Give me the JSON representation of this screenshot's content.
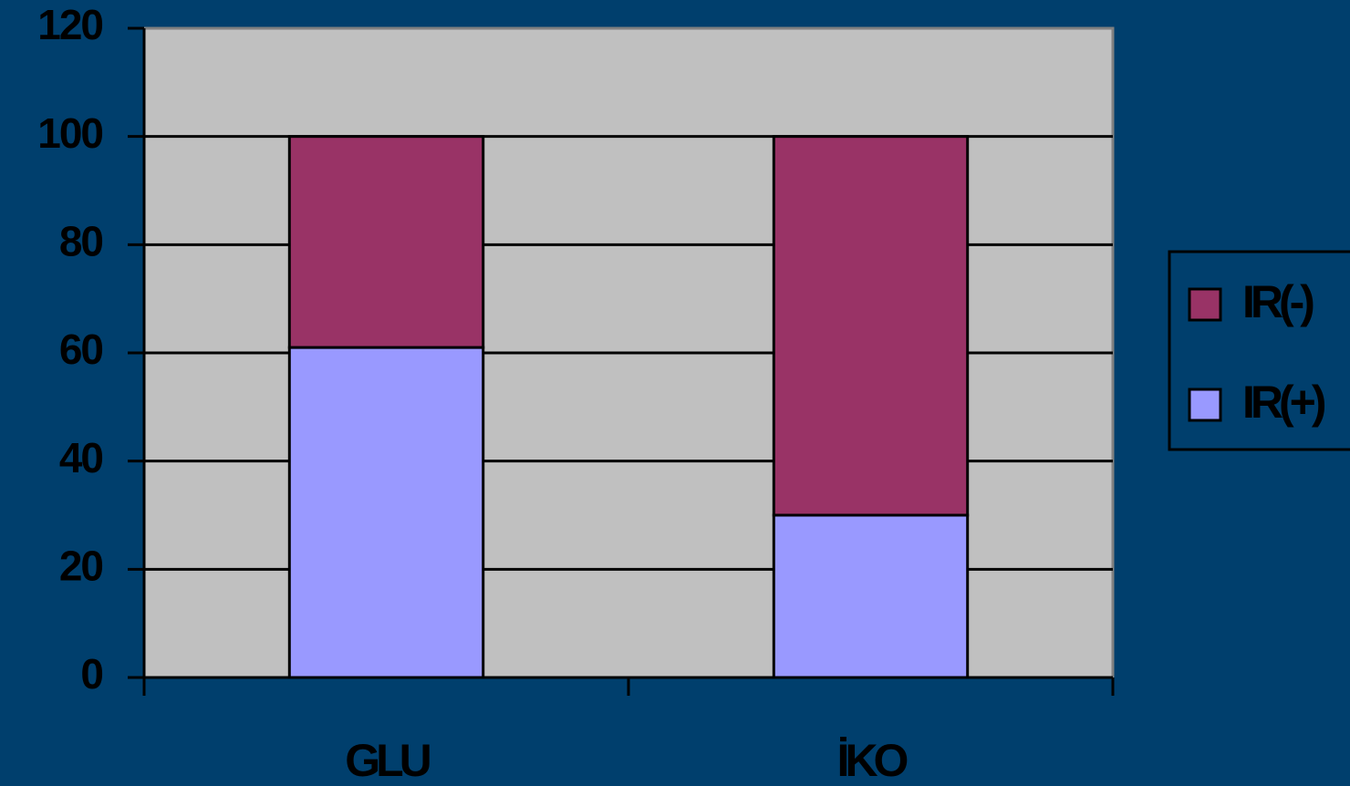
{
  "chart_data": {
    "type": "stacked_bar",
    "categories": [
      "GLU",
      "İKO"
    ],
    "series": [
      {
        "name": "IR(+)",
        "color": "#9999ff",
        "values": [
          61,
          30
        ]
      },
      {
        "name": "IR(-)",
        "color": "#993366",
        "values": [
          39,
          70
        ]
      }
    ],
    "ylim": [
      0,
      120
    ],
    "yticks": [
      0,
      20,
      40,
      60,
      80,
      100,
      120
    ],
    "grid": true,
    "legend": "right"
  }
}
